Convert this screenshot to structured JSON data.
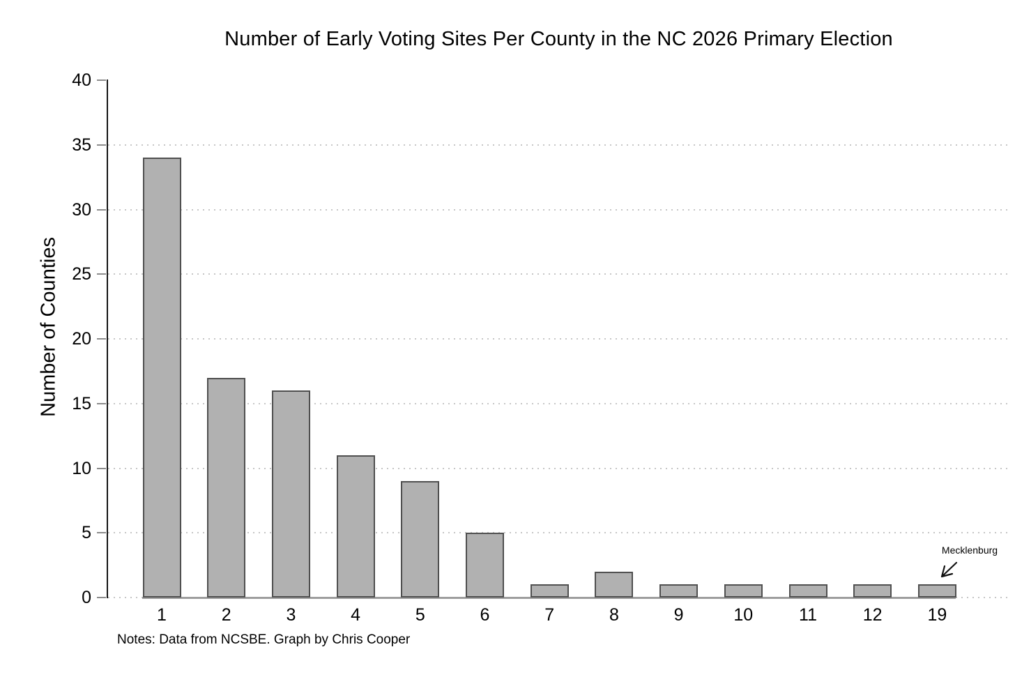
{
  "title": "Number of Early Voting Sites Per County in the NC 2026 Primary Election",
  "notes": "Notes: Data from NCSBE. Graph by Chris Cooper",
  "chart_data": {
    "type": "bar",
    "title": "Number of Early Voting Sites Per County in the NC 2026 Primary Election",
    "categories": [
      "1",
      "2",
      "3",
      "4",
      "5",
      "6",
      "7",
      "8",
      "9",
      "10",
      "11",
      "12",
      "19"
    ],
    "values": [
      34,
      17,
      16,
      11,
      9,
      5,
      1,
      2,
      1,
      1,
      1,
      1,
      1
    ],
    "xlabel": "",
    "ylabel": "Number of Counties",
    "ylim": [
      0,
      40
    ],
    "yticks": [
      0,
      5,
      10,
      15,
      20,
      25,
      30,
      35,
      40
    ],
    "grid": "horizontal-dotted",
    "legend": "none",
    "annotations": [
      {
        "text": "Mecklenburg",
        "category": "19",
        "value": 1
      }
    ],
    "colors": {
      "bar_fill": "#b1b1b1",
      "bar_border": "#4f4f4f",
      "gridline": "#c6c6c6",
      "axis": "#141414",
      "tick": "#8c8c8c",
      "baseline": "#9e9e9e"
    }
  }
}
